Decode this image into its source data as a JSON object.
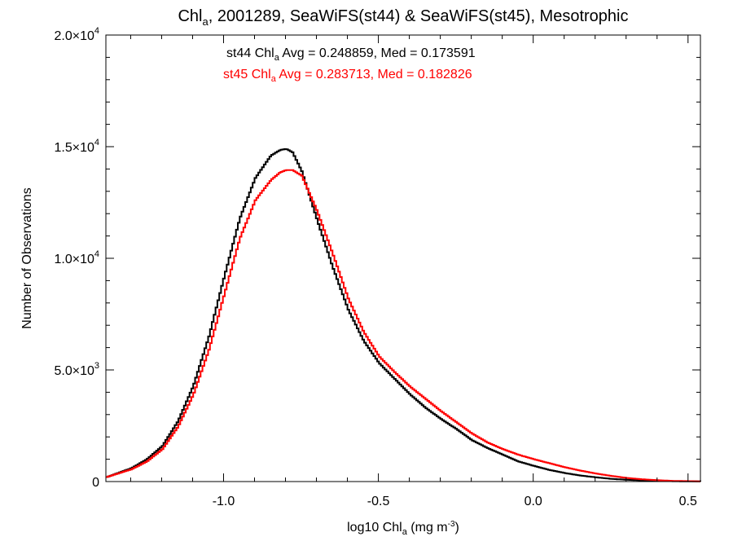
{
  "chart_data": {
    "type": "line",
    "title": {
      "prefix": "Chl",
      "sub": "a",
      "rest": ", 2001289, SeaWiFS(st44) & SeaWiFS(st45), Mesotrophic"
    },
    "xlabel": {
      "prefix": "log10 Chl",
      "sub": "a",
      "mid": " (mg m",
      "sup": "-3",
      "suffix": ")"
    },
    "ylabel": "Number of Observations",
    "xlim": [
      -1.38,
      0.54
    ],
    "ylim": [
      0,
      20000
    ],
    "x_ticks": [
      {
        "value": -1.0,
        "label": "-1.0"
      },
      {
        "value": -0.5,
        "label": "-0.5"
      },
      {
        "value": 0.0,
        "label": "0.0"
      },
      {
        "value": 0.5,
        "label": "0.5"
      }
    ],
    "y_ticks": [
      {
        "value": 0,
        "mant": "0",
        "exp": ""
      },
      {
        "value": 5000,
        "mant": "5.0×10",
        "exp": "3"
      },
      {
        "value": 10000,
        "mant": "1.0×10",
        "exp": "4"
      },
      {
        "value": 15000,
        "mant": "1.5×10",
        "exp": "4"
      },
      {
        "value": 20000,
        "mant": "2.0×10",
        "exp": "4"
      }
    ],
    "grid": false,
    "step": true,
    "annotations": [
      {
        "prefix": "st44 Chl",
        "sub": "a",
        "rest": " Avg = 0.248859, Med = 0.173591",
        "color": "#000000"
      },
      {
        "prefix": "st45 Chl",
        "sub": "a",
        "rest": " Avg = 0.283713, Med = 0.182826",
        "color": "#ff0000"
      }
    ],
    "series": [
      {
        "color": "#000000",
        "x": [
          -1.38,
          -1.3,
          -1.25,
          -1.2,
          -1.15,
          -1.1,
          -1.05,
          -1.0,
          -0.95,
          -0.9,
          -0.85,
          -0.82,
          -0.8,
          -0.78,
          -0.75,
          -0.7,
          -0.65,
          -0.6,
          -0.55,
          -0.5,
          -0.45,
          -0.4,
          -0.35,
          -0.3,
          -0.25,
          -0.2,
          -0.15,
          -0.1,
          -0.05,
          0.0,
          0.05,
          0.1,
          0.15,
          0.2,
          0.25,
          0.3,
          0.35,
          0.4,
          0.45,
          0.54
        ],
        "y": [
          200,
          600,
          1000,
          1600,
          2700,
          4300,
          6500,
          9200,
          11800,
          13600,
          14600,
          14850,
          14900,
          14750,
          13900,
          11700,
          9600,
          7700,
          6300,
          5300,
          4600,
          3900,
          3300,
          2800,
          2350,
          1850,
          1500,
          1200,
          900,
          700,
          520,
          380,
          270,
          190,
          120,
          80,
          50,
          30,
          15,
          5
        ]
      },
      {
        "color": "#ff0000",
        "x": [
          -1.38,
          -1.3,
          -1.25,
          -1.2,
          -1.15,
          -1.1,
          -1.05,
          -1.0,
          -0.95,
          -0.9,
          -0.85,
          -0.82,
          -0.8,
          -0.78,
          -0.75,
          -0.7,
          -0.65,
          -0.6,
          -0.55,
          -0.5,
          -0.45,
          -0.4,
          -0.35,
          -0.3,
          -0.25,
          -0.2,
          -0.15,
          -0.1,
          -0.05,
          0.0,
          0.05,
          0.1,
          0.15,
          0.2,
          0.25,
          0.3,
          0.35,
          0.4,
          0.45,
          0.54
        ],
        "y": [
          200,
          550,
          900,
          1450,
          2450,
          3900,
          5900,
          8400,
          10900,
          12600,
          13500,
          13850,
          13950,
          13950,
          13700,
          12100,
          10200,
          8200,
          6700,
          5600,
          4900,
          4250,
          3700,
          3150,
          2650,
          2150,
          1750,
          1450,
          1200,
          1000,
          820,
          640,
          490,
          360,
          250,
          160,
          100,
          60,
          30,
          10
        ]
      }
    ]
  }
}
